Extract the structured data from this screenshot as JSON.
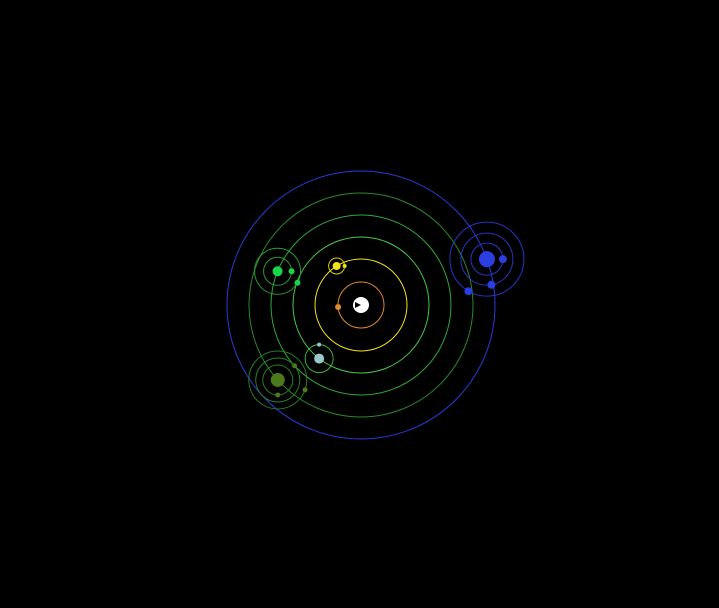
{
  "scene": {
    "background": "#000000",
    "star": {
      "name": "star",
      "color": "#ffffff",
      "marker_color": "#000000"
    },
    "planets": [
      {
        "name": "inner-orange-planet",
        "orbit_color": "#e08a2a",
        "body_color": "#e08a2a",
        "orbit_period": 1,
        "phase_deg": 185,
        "moons": []
      },
      {
        "name": "yellow-planet",
        "orbit_color": "#f2e21c",
        "body_color": "#f2e21c",
        "phase_deg": 122,
        "moons": [
          {
            "name": "yellow-moon",
            "color": "#f2e21c",
            "phase_deg": 0
          }
        ]
      },
      {
        "name": "pale-blue-planet",
        "orbit_color": "#46c84a",
        "body_color": "#9cc7c9",
        "phase_deg": 232,
        "moons": [
          {
            "name": "pale-blue-moon",
            "color": "#9cc7c9",
            "phase_deg": 90
          }
        ]
      },
      {
        "name": "bright-green-planet",
        "orbit_color": "#2fa83b",
        "body_color": "#18d64a",
        "phase_deg": 158,
        "moons": [
          {
            "name": "green-moon-1",
            "color": "#18d64a",
            "phase_deg": 0
          },
          {
            "name": "green-moon-2",
            "color": "#18d64a",
            "phase_deg": 330
          }
        ]
      },
      {
        "name": "olive-planet",
        "orbit_color": "#2a8a2a",
        "body_color": "#4a7a1a",
        "phase_deg": 222,
        "moons": [
          {
            "name": "olive-moon-1",
            "color": "#4a7a1a",
            "phase_deg": 270
          },
          {
            "name": "olive-moon-2",
            "color": "#4a7a1a",
            "phase_deg": 40
          },
          {
            "name": "olive-moon-3",
            "color": "#4a7a1a",
            "phase_deg": 340
          }
        ]
      },
      {
        "name": "blue-planet",
        "orbit_color": "#2a3ad8",
        "body_color": "#2d3ee0",
        "phase_deg": 20,
        "moons": [
          {
            "name": "blue-moon-1",
            "color": "#2d3ee0",
            "phase_deg": 0
          },
          {
            "name": "blue-moon-2",
            "color": "#2d3ee0",
            "phase_deg": 280
          },
          {
            "name": "blue-moon-3",
            "color": "#2d3ee0",
            "phase_deg": 240
          }
        ]
      }
    ]
  }
}
